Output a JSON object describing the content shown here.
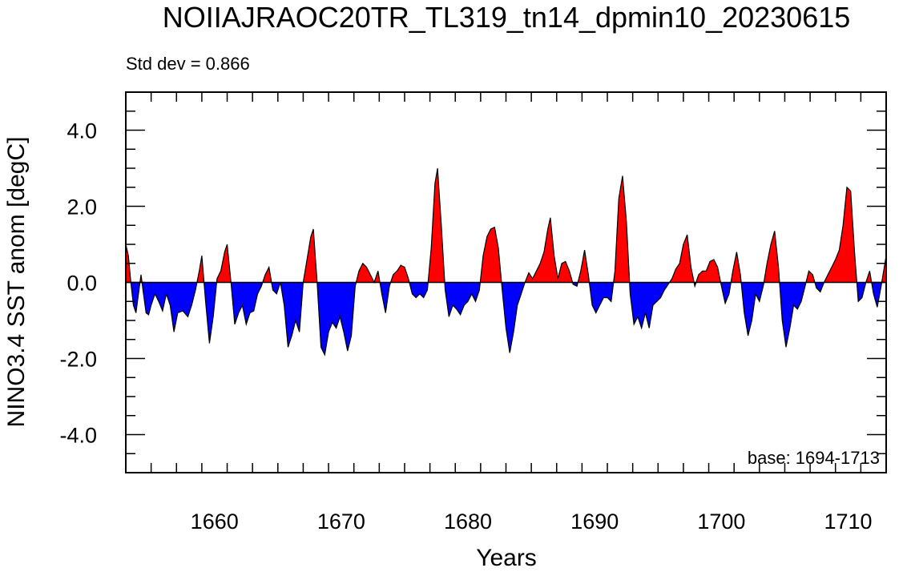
{
  "chart_data": {
    "type": "area",
    "title": "NOIIAJRAOC20TR_TL319_tn14_dpmin10_20230615",
    "std_label": "Std dev = 0.866",
    "base_label": "base: 1694-1713",
    "xlabel": "Years",
    "ylabel": "NINO3.4 SST anom [degC]",
    "xlim": [
      1653,
      1713
    ],
    "ylim": [
      -5,
      5
    ],
    "xticks": [
      1660,
      1670,
      1680,
      1690,
      1700,
      1710
    ],
    "yticks": [
      4,
      2,
      0,
      -2,
      -4
    ],
    "ytick_labels": [
      "4.0",
      "2.0",
      "0.0",
      "-2.0",
      "-4.0"
    ],
    "positive_color": "#ff0000",
    "negative_color": "#0000ff",
    "series": [
      {
        "values": [
          [
            1653.0,
            1.0
          ],
          [
            1653.2,
            0.7
          ],
          [
            1653.4,
            0.0
          ],
          [
            1653.6,
            -0.6
          ],
          [
            1653.8,
            -0.8
          ],
          [
            1654.0,
            -0.3
          ],
          [
            1654.2,
            0.2
          ],
          [
            1654.4,
            -0.3
          ],
          [
            1654.6,
            -0.8
          ],
          [
            1654.8,
            -0.85
          ],
          [
            1655.0,
            -0.6
          ],
          [
            1655.3,
            -0.3
          ],
          [
            1655.6,
            -0.5
          ],
          [
            1655.9,
            -0.75
          ],
          [
            1656.2,
            -0.3
          ],
          [
            1656.5,
            -0.6
          ],
          [
            1656.8,
            -1.3
          ],
          [
            1657.1,
            -0.8
          ],
          [
            1657.5,
            -0.75
          ],
          [
            1657.9,
            -0.9
          ],
          [
            1658.2,
            -0.6
          ],
          [
            1658.5,
            -0.2
          ],
          [
            1658.8,
            0.3
          ],
          [
            1659.0,
            0.7
          ],
          [
            1659.3,
            -0.5
          ],
          [
            1659.6,
            -1.6
          ],
          [
            1659.9,
            -0.9
          ],
          [
            1660.2,
            0.1
          ],
          [
            1660.5,
            0.3
          ],
          [
            1660.8,
            0.8
          ],
          [
            1661.0,
            1.0
          ],
          [
            1661.3,
            0.0
          ],
          [
            1661.6,
            -1.1
          ],
          [
            1661.9,
            -0.8
          ],
          [
            1662.2,
            -0.6
          ],
          [
            1662.5,
            -1.1
          ],
          [
            1662.8,
            -0.8
          ],
          [
            1663.1,
            -0.75
          ],
          [
            1663.4,
            -0.3
          ],
          [
            1663.7,
            -0.1
          ],
          [
            1664.0,
            0.2
          ],
          [
            1664.3,
            0.4
          ],
          [
            1664.6,
            -0.2
          ],
          [
            1664.9,
            -0.3
          ],
          [
            1665.2,
            0.0
          ],
          [
            1665.5,
            -0.6
          ],
          [
            1665.8,
            -1.7
          ],
          [
            1666.1,
            -1.4
          ],
          [
            1666.4,
            -1.0
          ],
          [
            1666.7,
            -1.3
          ],
          [
            1667.0,
            0.0
          ],
          [
            1667.3,
            0.6
          ],
          [
            1667.6,
            1.2
          ],
          [
            1667.8,
            1.4
          ],
          [
            1668.1,
            0.0
          ],
          [
            1668.4,
            -1.7
          ],
          [
            1668.7,
            -1.9
          ],
          [
            1669.0,
            -1.3
          ],
          [
            1669.3,
            -1.05
          ],
          [
            1669.6,
            -1.2
          ],
          [
            1669.9,
            -0.9
          ],
          [
            1670.2,
            -1.3
          ],
          [
            1670.5,
            -1.8
          ],
          [
            1670.8,
            -1.4
          ],
          [
            1671.1,
            -0.1
          ],
          [
            1671.4,
            0.3
          ],
          [
            1671.7,
            0.5
          ],
          [
            1672.0,
            0.4
          ],
          [
            1672.3,
            0.2
          ],
          [
            1672.6,
            0.0
          ],
          [
            1672.9,
            0.3
          ],
          [
            1673.2,
            -0.3
          ],
          [
            1673.5,
            -0.8
          ],
          [
            1673.8,
            -0.1
          ],
          [
            1674.1,
            0.2
          ],
          [
            1674.4,
            0.3
          ],
          [
            1674.7,
            0.45
          ],
          [
            1675.0,
            0.4
          ],
          [
            1675.3,
            0.1
          ],
          [
            1675.6,
            -0.3
          ],
          [
            1675.9,
            -0.4
          ],
          [
            1676.2,
            -0.3
          ],
          [
            1676.5,
            -0.4
          ],
          [
            1676.8,
            -0.2
          ],
          [
            1677.1,
            0.9
          ],
          [
            1677.4,
            2.6
          ],
          [
            1677.6,
            3.0
          ],
          [
            1677.9,
            1.5
          ],
          [
            1678.2,
            -0.2
          ],
          [
            1678.5,
            -0.9
          ],
          [
            1678.8,
            -0.6
          ],
          [
            1679.1,
            -0.7
          ],
          [
            1679.4,
            -0.85
          ],
          [
            1679.7,
            -0.6
          ],
          [
            1680.0,
            -0.5
          ],
          [
            1680.3,
            -0.3
          ],
          [
            1680.6,
            -0.5
          ],
          [
            1680.9,
            -0.2
          ],
          [
            1681.2,
            0.7
          ],
          [
            1681.5,
            1.2
          ],
          [
            1681.8,
            1.4
          ],
          [
            1682.1,
            1.45
          ],
          [
            1682.4,
            0.9
          ],
          [
            1682.7,
            -0.2
          ],
          [
            1683.0,
            -1.2
          ],
          [
            1683.3,
            -1.85
          ],
          [
            1683.6,
            -1.3
          ],
          [
            1683.9,
            -0.6
          ],
          [
            1684.2,
            -0.3
          ],
          [
            1684.5,
            0.0
          ],
          [
            1684.8,
            0.25
          ],
          [
            1685.1,
            0.1
          ],
          [
            1685.4,
            0.3
          ],
          [
            1685.7,
            0.5
          ],
          [
            1686.0,
            0.8
          ],
          [
            1686.3,
            1.4
          ],
          [
            1686.5,
            1.7
          ],
          [
            1686.8,
            0.7
          ],
          [
            1687.1,
            0.1
          ],
          [
            1687.4,
            0.5
          ],
          [
            1687.7,
            0.55
          ],
          [
            1688.0,
            0.3
          ],
          [
            1688.3,
            -0.05
          ],
          [
            1688.6,
            -0.1
          ],
          [
            1688.9,
            0.3
          ],
          [
            1689.2,
            0.85
          ],
          [
            1689.5,
            0.2
          ],
          [
            1689.8,
            -0.6
          ],
          [
            1690.1,
            -0.8
          ],
          [
            1690.4,
            -0.6
          ],
          [
            1690.7,
            -0.4
          ],
          [
            1691.0,
            -0.4
          ],
          [
            1691.3,
            -0.5
          ],
          [
            1691.6,
            0.3
          ],
          [
            1691.9,
            2.2
          ],
          [
            1692.2,
            2.8
          ],
          [
            1692.5,
            1.6
          ],
          [
            1692.8,
            -0.3
          ],
          [
            1693.1,
            -1.1
          ],
          [
            1693.4,
            -0.9
          ],
          [
            1693.7,
            -1.2
          ],
          [
            1694.0,
            -0.8
          ],
          [
            1694.3,
            -1.2
          ],
          [
            1694.6,
            -0.6
          ],
          [
            1694.9,
            -0.5
          ],
          [
            1695.2,
            -0.4
          ],
          [
            1695.5,
            -0.2
          ],
          [
            1695.8,
            -0.05
          ],
          [
            1696.1,
            0.1
          ],
          [
            1696.4,
            0.35
          ],
          [
            1696.7,
            0.5
          ],
          [
            1697.0,
            1.0
          ],
          [
            1697.3,
            1.25
          ],
          [
            1697.6,
            0.4
          ],
          [
            1697.9,
            -0.1
          ],
          [
            1698.2,
            0.2
          ],
          [
            1698.5,
            0.3
          ],
          [
            1698.8,
            0.3
          ],
          [
            1699.1,
            0.55
          ],
          [
            1699.4,
            0.6
          ],
          [
            1699.7,
            0.4
          ],
          [
            1700.0,
            -0.1
          ],
          [
            1700.3,
            -0.55
          ],
          [
            1700.6,
            -0.3
          ],
          [
            1700.9,
            0.3
          ],
          [
            1701.2,
            0.8
          ],
          [
            1701.5,
            0.2
          ],
          [
            1701.8,
            -0.8
          ],
          [
            1702.1,
            -1.4
          ],
          [
            1702.4,
            -1.0
          ],
          [
            1702.7,
            -0.3
          ],
          [
            1703.0,
            -0.5
          ],
          [
            1703.3,
            -0.1
          ],
          [
            1703.6,
            0.5
          ],
          [
            1703.9,
            1.0
          ],
          [
            1704.2,
            1.35
          ],
          [
            1704.5,
            0.4
          ],
          [
            1704.8,
            -1.0
          ],
          [
            1705.1,
            -1.7
          ],
          [
            1705.4,
            -1.2
          ],
          [
            1705.7,
            -0.6
          ],
          [
            1706.0,
            -0.7
          ],
          [
            1706.3,
            -0.5
          ],
          [
            1706.6,
            -0.1
          ],
          [
            1706.9,
            0.3
          ],
          [
            1707.2,
            0.2
          ],
          [
            1707.5,
            -0.15
          ],
          [
            1707.8,
            -0.25
          ],
          [
            1708.1,
            0.0
          ],
          [
            1708.4,
            0.2
          ],
          [
            1708.7,
            0.4
          ],
          [
            1709.0,
            0.6
          ],
          [
            1709.3,
            0.85
          ],
          [
            1709.6,
            1.5
          ],
          [
            1709.9,
            2.5
          ],
          [
            1710.2,
            2.4
          ],
          [
            1710.5,
            0.8
          ],
          [
            1710.8,
            -0.5
          ],
          [
            1711.1,
            -0.4
          ],
          [
            1711.4,
            0.0
          ],
          [
            1711.7,
            0.3
          ],
          [
            1712.0,
            -0.3
          ],
          [
            1712.3,
            -0.65
          ],
          [
            1712.6,
            -0.1
          ],
          [
            1713.0,
            0.7
          ]
        ]
      }
    ]
  }
}
